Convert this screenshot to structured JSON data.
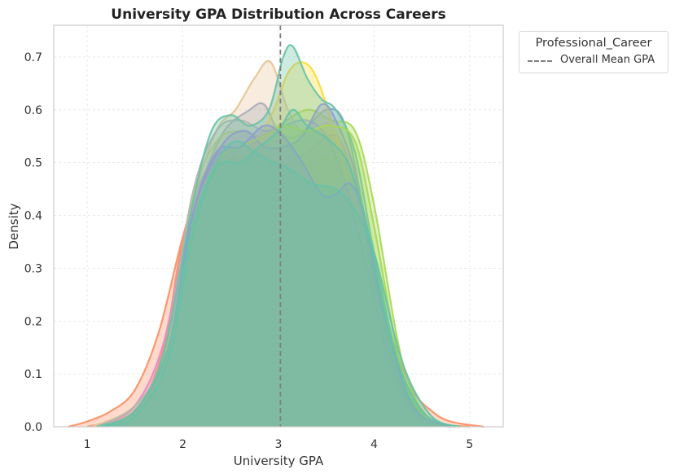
{
  "chart_data": {
    "type": "area",
    "title": "University GPA Distribution Across Careers",
    "xlabel": "University GPA",
    "ylabel": "Density",
    "xlim": [
      0.65,
      5.35
    ],
    "ylim": [
      0,
      0.76
    ],
    "xticks": [
      1,
      2,
      3,
      4,
      5
    ],
    "yticks": [
      0.0,
      0.1,
      0.2,
      0.3,
      0.4,
      0.5,
      0.6,
      0.7
    ],
    "grid": true,
    "legend": {
      "title": "Professional_Career",
      "placement": "outside-top-right",
      "entries": [
        {
          "label": "Overall Mean GPA",
          "style": "dashed",
          "color": "#7f7f7f"
        }
      ]
    },
    "mean_line": {
      "x": 3.02,
      "color": "#7f7f7f"
    },
    "series": [
      {
        "color": "#fc8d62",
        "points": [
          [
            0.8,
            0.0
          ],
          [
            1.0,
            0.01
          ],
          [
            1.25,
            0.03
          ],
          [
            1.5,
            0.07
          ],
          [
            1.75,
            0.18
          ],
          [
            2.0,
            0.36
          ],
          [
            2.2,
            0.47
          ],
          [
            2.4,
            0.51
          ],
          [
            2.6,
            0.5
          ],
          [
            2.8,
            0.49
          ],
          [
            3.0,
            0.47
          ],
          [
            3.2,
            0.46
          ],
          [
            3.4,
            0.46
          ],
          [
            3.6,
            0.45
          ],
          [
            3.8,
            0.4
          ],
          [
            4.0,
            0.28
          ],
          [
            4.2,
            0.16
          ],
          [
            4.4,
            0.07
          ],
          [
            4.6,
            0.03
          ],
          [
            4.8,
            0.01
          ],
          [
            5.15,
            0.0
          ]
        ]
      },
      {
        "color": "#fc8d62",
        "points": [
          [
            1.0,
            0.0
          ],
          [
            1.5,
            0.03
          ],
          [
            1.8,
            0.15
          ],
          [
            2.0,
            0.35
          ],
          [
            2.3,
            0.49
          ],
          [
            2.6,
            0.51
          ],
          [
            2.8,
            0.52
          ],
          [
            3.0,
            0.5
          ],
          [
            3.3,
            0.5
          ],
          [
            3.6,
            0.51
          ],
          [
            3.8,
            0.46
          ],
          [
            4.0,
            0.3
          ],
          [
            4.3,
            0.09
          ],
          [
            4.6,
            0.01
          ],
          [
            5.0,
            0.0
          ]
        ]
      },
      {
        "color": "#8da0cb",
        "points": [
          [
            1.15,
            0.0
          ],
          [
            1.5,
            0.03
          ],
          [
            1.8,
            0.13
          ],
          [
            2.1,
            0.4
          ],
          [
            2.4,
            0.55
          ],
          [
            2.7,
            0.6
          ],
          [
            2.85,
            0.61
          ],
          [
            3.0,
            0.56
          ],
          [
            3.2,
            0.55
          ],
          [
            3.5,
            0.6
          ],
          [
            3.7,
            0.57
          ],
          [
            3.9,
            0.4
          ],
          [
            4.2,
            0.12
          ],
          [
            4.5,
            0.02
          ],
          [
            4.85,
            0.0
          ]
        ]
      },
      {
        "color": "#e78ac3",
        "points": [
          [
            1.15,
            0.0
          ],
          [
            1.5,
            0.04
          ],
          [
            1.8,
            0.16
          ],
          [
            2.1,
            0.42
          ],
          [
            2.4,
            0.52
          ],
          [
            2.7,
            0.5
          ],
          [
            3.0,
            0.49
          ],
          [
            3.3,
            0.52
          ],
          [
            3.6,
            0.55
          ],
          [
            3.8,
            0.46
          ],
          [
            4.0,
            0.3
          ],
          [
            4.3,
            0.08
          ],
          [
            4.6,
            0.01
          ],
          [
            4.85,
            0.0
          ]
        ]
      },
      {
        "color": "#a6d854",
        "points": [
          [
            1.15,
            0.0
          ],
          [
            1.5,
            0.03
          ],
          [
            1.8,
            0.13
          ],
          [
            2.1,
            0.43
          ],
          [
            2.35,
            0.54
          ],
          [
            2.6,
            0.56
          ],
          [
            2.8,
            0.55
          ],
          [
            3.0,
            0.57
          ],
          [
            3.3,
            0.6
          ],
          [
            3.55,
            0.58
          ],
          [
            3.8,
            0.56
          ],
          [
            4.0,
            0.42
          ],
          [
            4.3,
            0.12
          ],
          [
            4.6,
            0.01
          ],
          [
            4.9,
            0.0
          ]
        ]
      },
      {
        "color": "#ffd92f",
        "points": [
          [
            1.15,
            0.0
          ],
          [
            1.5,
            0.03
          ],
          [
            1.8,
            0.12
          ],
          [
            2.1,
            0.35
          ],
          [
            2.4,
            0.5
          ],
          [
            2.7,
            0.52
          ],
          [
            2.95,
            0.6
          ],
          [
            3.1,
            0.67
          ],
          [
            3.25,
            0.69
          ],
          [
            3.4,
            0.66
          ],
          [
            3.6,
            0.55
          ],
          [
            3.8,
            0.41
          ],
          [
            4.1,
            0.15
          ],
          [
            4.4,
            0.03
          ],
          [
            4.8,
            0.0
          ]
        ]
      },
      {
        "color": "#e5c494",
        "points": [
          [
            1.05,
            0.0
          ],
          [
            1.5,
            0.04
          ],
          [
            1.8,
            0.14
          ],
          [
            2.1,
            0.42
          ],
          [
            2.35,
            0.56
          ],
          [
            2.55,
            0.6
          ],
          [
            2.75,
            0.66
          ],
          [
            2.92,
            0.69
          ],
          [
            3.1,
            0.6
          ],
          [
            3.3,
            0.55
          ],
          [
            3.55,
            0.57
          ],
          [
            3.8,
            0.44
          ],
          [
            4.1,
            0.15
          ],
          [
            4.4,
            0.03
          ],
          [
            4.8,
            0.0
          ]
        ]
      },
      {
        "color": "#b3b3b3",
        "points": [
          [
            1.1,
            0.0
          ],
          [
            1.5,
            0.04
          ],
          [
            1.8,
            0.14
          ],
          [
            2.1,
            0.44
          ],
          [
            2.35,
            0.56
          ],
          [
            2.6,
            0.58
          ],
          [
            2.85,
            0.56
          ],
          [
            3.05,
            0.57
          ],
          [
            3.3,
            0.58
          ],
          [
            3.5,
            0.55
          ],
          [
            3.7,
            0.46
          ],
          [
            3.9,
            0.32
          ],
          [
            4.2,
            0.1
          ],
          [
            4.5,
            0.01
          ],
          [
            4.8,
            0.0
          ]
        ]
      },
      {
        "color": "#66c2a5",
        "points": [
          [
            1.1,
            0.0
          ],
          [
            1.5,
            0.03
          ],
          [
            1.8,
            0.14
          ],
          [
            2.1,
            0.42
          ],
          [
            2.3,
            0.56
          ],
          [
            2.5,
            0.59
          ],
          [
            2.7,
            0.57
          ],
          [
            2.9,
            0.6
          ],
          [
            3.05,
            0.7
          ],
          [
            3.15,
            0.72
          ],
          [
            3.3,
            0.66
          ],
          [
            3.45,
            0.62
          ],
          [
            3.6,
            0.6
          ],
          [
            3.8,
            0.52
          ],
          [
            4.0,
            0.33
          ],
          [
            4.3,
            0.09
          ],
          [
            4.6,
            0.01
          ],
          [
            4.85,
            0.0
          ]
        ]
      },
      {
        "color": "#8da0cb",
        "points": [
          [
            1.15,
            0.0
          ],
          [
            1.5,
            0.03
          ],
          [
            1.85,
            0.15
          ],
          [
            2.1,
            0.4
          ],
          [
            2.4,
            0.53
          ],
          [
            2.65,
            0.56
          ],
          [
            2.85,
            0.53
          ],
          [
            3.05,
            0.53
          ],
          [
            3.25,
            0.55
          ],
          [
            3.45,
            0.61
          ],
          [
            3.6,
            0.58
          ],
          [
            3.8,
            0.48
          ],
          [
            4.05,
            0.25
          ],
          [
            4.4,
            0.04
          ],
          [
            4.8,
            0.0
          ]
        ]
      },
      {
        "color": "#a6d854",
        "points": [
          [
            1.15,
            0.0
          ],
          [
            1.5,
            0.03
          ],
          [
            1.85,
            0.15
          ],
          [
            2.1,
            0.38
          ],
          [
            2.35,
            0.5
          ],
          [
            2.6,
            0.53
          ],
          [
            2.85,
            0.55
          ],
          [
            3.05,
            0.57
          ],
          [
            3.3,
            0.56
          ],
          [
            3.55,
            0.57
          ],
          [
            3.8,
            0.54
          ],
          [
            4.0,
            0.38
          ],
          [
            4.3,
            0.1
          ],
          [
            4.6,
            0.01
          ],
          [
            4.9,
            0.0
          ]
        ]
      },
      {
        "color": "#8da0cb",
        "points": [
          [
            1.15,
            0.0
          ],
          [
            1.5,
            0.03
          ],
          [
            1.85,
            0.15
          ],
          [
            2.1,
            0.4
          ],
          [
            2.35,
            0.52
          ],
          [
            2.6,
            0.53
          ],
          [
            2.85,
            0.57
          ],
          [
            3.05,
            0.55
          ],
          [
            3.25,
            0.5
          ],
          [
            3.45,
            0.44
          ],
          [
            3.6,
            0.44
          ],
          [
            3.75,
            0.46
          ],
          [
            3.9,
            0.4
          ],
          [
            4.1,
            0.22
          ],
          [
            4.4,
            0.04
          ],
          [
            4.8,
            0.0
          ]
        ]
      },
      {
        "color": "#66c2a5",
        "points": [
          [
            1.15,
            0.0
          ],
          [
            1.5,
            0.03
          ],
          [
            1.85,
            0.15
          ],
          [
            2.1,
            0.38
          ],
          [
            2.35,
            0.5
          ],
          [
            2.55,
            0.54
          ],
          [
            2.75,
            0.52
          ],
          [
            2.95,
            0.5
          ],
          [
            3.1,
            0.49
          ],
          [
            3.35,
            0.46
          ],
          [
            3.6,
            0.45
          ],
          [
            3.8,
            0.41
          ],
          [
            4.0,
            0.33
          ],
          [
            4.3,
            0.12
          ],
          [
            4.6,
            0.02
          ],
          [
            4.9,
            0.0
          ]
        ]
      },
      {
        "color": "#66c2a5",
        "points": [
          [
            1.2,
            0.0
          ],
          [
            1.5,
            0.02
          ],
          [
            1.85,
            0.13
          ],
          [
            2.1,
            0.36
          ],
          [
            2.35,
            0.49
          ],
          [
            2.6,
            0.5
          ],
          [
            2.8,
            0.53
          ],
          [
            3.0,
            0.56
          ],
          [
            3.15,
            0.6
          ],
          [
            3.3,
            0.57
          ],
          [
            3.55,
            0.54
          ],
          [
            3.75,
            0.49
          ],
          [
            3.95,
            0.36
          ],
          [
            4.2,
            0.15
          ],
          [
            4.5,
            0.03
          ],
          [
            4.85,
            0.0
          ]
        ]
      }
    ]
  }
}
